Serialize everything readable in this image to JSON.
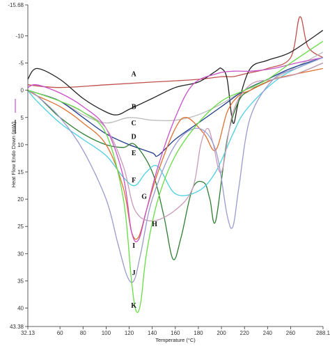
{
  "chart_data": {
    "type": "line",
    "title": "",
    "xlabel": "Temperature (°C)",
    "ylabel": "Heat Flow Endo Down (mW)",
    "xlim": [
      32.13,
      288.1
    ],
    "ylim": [
      43.38,
      -15.68
    ],
    "y_inverted": true,
    "grid": false,
    "x_ticks": [
      "32.13",
      "60",
      "80",
      "100",
      "120",
      "140",
      "160",
      "180",
      "200",
      "220",
      "240",
      "260",
      "288.1"
    ],
    "x_tick_values": [
      32.13,
      60,
      80,
      100,
      120,
      140,
      160,
      180,
      200,
      220,
      240,
      260,
      288.1
    ],
    "y_ticks": [
      "-15.68",
      "-10",
      "-5",
      "0",
      "5",
      "10",
      "15",
      "20",
      "25",
      "30",
      "35",
      "40",
      "43.38"
    ],
    "y_tick_values": [
      -15.68,
      -10,
      -5,
      0,
      5,
      10,
      15,
      20,
      25,
      30,
      35,
      40,
      43.38
    ],
    "series": [
      {
        "name": "A",
        "color": "#c0504d",
        "x": [
          32,
          60,
          100,
          140,
          180,
          200,
          210,
          220,
          240,
          260,
          268,
          275,
          288
        ],
        "y": [
          -1,
          -0.5,
          -1,
          -1.5,
          -2,
          -2.5,
          -2.5,
          -3,
          -4,
          -6,
          -13.5,
          -8,
          -6
        ]
      },
      {
        "name": "B",
        "color": "#222222",
        "x": [
          32,
          40,
          60,
          80,
          100,
          110,
          120,
          140,
          160,
          180,
          195,
          200,
          205,
          210,
          215,
          225,
          240,
          260,
          288
        ],
        "y": [
          -2,
          -4,
          -2,
          1.5,
          4,
          4.5,
          3.5,
          1.5,
          -0.5,
          -1.5,
          -3.5,
          -4,
          -2,
          6,
          2,
          -4,
          -5.5,
          -7,
          -11
        ]
      },
      {
        "name": "C",
        "color": "#bbbbbb",
        "x": [
          32,
          40,
          60,
          80,
          100,
          120,
          140,
          160,
          180,
          200,
          220,
          240,
          288
        ],
        "y": [
          0,
          0.5,
          2,
          4.5,
          6,
          5,
          5.5,
          5.5,
          4.5,
          2.5,
          0,
          -1.5,
          -7
        ]
      },
      {
        "name": "D",
        "color": "#1f3a8c",
        "x": [
          32,
          40,
          60,
          80,
          100,
          120,
          140,
          145,
          160,
          180,
          200,
          220,
          240,
          260,
          288
        ],
        "y": [
          0,
          0.5,
          2,
          5,
          8,
          10,
          11.5,
          12,
          9,
          6,
          3,
          0,
          -2,
          -4,
          -6
        ]
      },
      {
        "name": "E",
        "color": "#2e7d32",
        "x": [
          32,
          40,
          50,
          60,
          80,
          100,
          115,
          125,
          140,
          150,
          158,
          165,
          175,
          185,
          190,
          195,
          205,
          215,
          225,
          245,
          265,
          288
        ],
        "y": [
          0,
          1,
          3,
          5,
          8,
          10,
          10.5,
          10,
          15,
          23,
          31,
          27,
          18,
          17,
          20,
          24,
          9,
          2,
          0,
          -2,
          -3,
          -5
        ]
      },
      {
        "name": "F",
        "color": "#4dd0e1",
        "x": [
          32,
          40,
          60,
          80,
          100,
          115,
          125,
          135,
          145,
          160,
          180,
          195,
          210,
          220,
          240,
          260,
          288
        ],
        "y": [
          0,
          2,
          6,
          9,
          12,
          16,
          17.5,
          15,
          14,
          19,
          18.5,
          15,
          8,
          4,
          -0.5,
          -3.5,
          -6
        ]
      },
      {
        "name": "G",
        "color": "#e07030",
        "x": [
          32,
          40,
          60,
          80,
          100,
          115,
          122,
          128,
          135,
          145,
          160,
          170,
          185,
          195,
          205,
          215,
          225,
          245,
          265,
          288
        ],
        "y": [
          0,
          1,
          3,
          6,
          10,
          18,
          26,
          27,
          22,
          15,
          7,
          5,
          8,
          11,
          4,
          1,
          0,
          -2,
          -3,
          -4
        ]
      },
      {
        "name": "H",
        "color": "#c850c8",
        "x": [
          32,
          40,
          60,
          80,
          100,
          115,
          122,
          128,
          135,
          145,
          160,
          175,
          195,
          210,
          225,
          245,
          265,
          288
        ],
        "y": [
          -0.5,
          -1,
          0.5,
          3,
          7,
          16,
          26,
          27.5,
          22,
          14,
          5,
          -1,
          -3,
          -3.5,
          -3.5,
          -4,
          -5,
          -6
        ]
      },
      {
        "name": "I",
        "color": "#c89ab8",
        "x": [
          32,
          40,
          60,
          80,
          100,
          115,
          125,
          140,
          160,
          175,
          182,
          188,
          193,
          200,
          210,
          225,
          245,
          265,
          288
        ],
        "y": [
          0,
          0.5,
          2,
          4,
          7,
          14,
          22,
          24,
          22,
          18,
          10,
          7,
          10,
          15,
          4,
          -1,
          -2,
          -3,
          -5
        ]
      },
      {
        "name": "J",
        "color": "#9a9ad0",
        "x": [
          32,
          40,
          60,
          80,
          100,
          110,
          118,
          124,
          130,
          140,
          160,
          180,
          195,
          205,
          210,
          215,
          225,
          245,
          265,
          288
        ],
        "y": [
          0,
          1,
          5,
          11,
          20,
          28,
          34,
          35,
          30,
          20,
          10,
          7,
          11,
          23,
          25,
          18,
          5,
          -2,
          -4,
          -6
        ]
      },
      {
        "name": "K",
        "color": "#66dd44",
        "x": [
          32,
          40,
          60,
          80,
          100,
          115,
          122,
          126,
          130,
          135,
          145,
          160,
          180,
          200,
          220,
          240,
          260,
          288
        ],
        "y": [
          0,
          0.5,
          2,
          4,
          8,
          20,
          35,
          40.5,
          39,
          30,
          20,
          12,
          6,
          2,
          0,
          -2,
          -5,
          -9
        ]
      }
    ],
    "curve_labels": [
      {
        "text": "A",
        "x": 124,
        "y": -3.0
      },
      {
        "text": "B",
        "x": 124,
        "y": 3.0
      },
      {
        "text": "C",
        "x": 124,
        "y": 6.0
      },
      {
        "text": "D",
        "x": 124,
        "y": 8.5
      },
      {
        "text": "E",
        "x": 124,
        "y": 11.5
      },
      {
        "text": "F",
        "x": 124,
        "y": 16.5
      },
      {
        "text": "G",
        "x": 133,
        "y": 19.5
      },
      {
        "text": "H",
        "x": 142,
        "y": 24.5
      },
      {
        "text": "I",
        "x": 124,
        "y": 28.5
      },
      {
        "text": "J",
        "x": 124,
        "y": 33.5
      },
      {
        "text": "K",
        "x": 124,
        "y": 39.5
      }
    ]
  }
}
